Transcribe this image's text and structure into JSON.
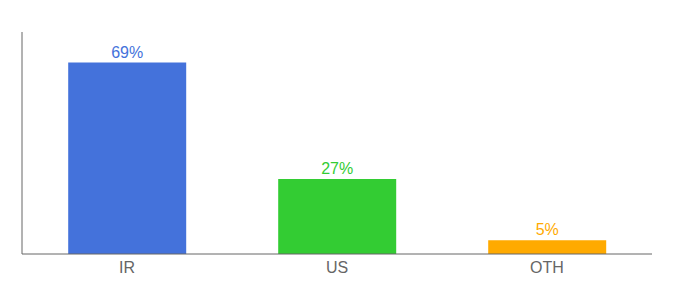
{
  "chart_data": {
    "type": "bar",
    "categories": [
      "IR",
      "US",
      "OTH"
    ],
    "values": [
      69,
      27,
      5
    ],
    "value_labels": [
      "69%",
      "27%",
      "5%"
    ],
    "colors": [
      "#4472db",
      "#33cc33",
      "#ffaa00"
    ],
    "ylim": [
      0,
      80
    ],
    "yticks": [],
    "grid": false,
    "data_labels": true,
    "tick_labels": "x"
  }
}
